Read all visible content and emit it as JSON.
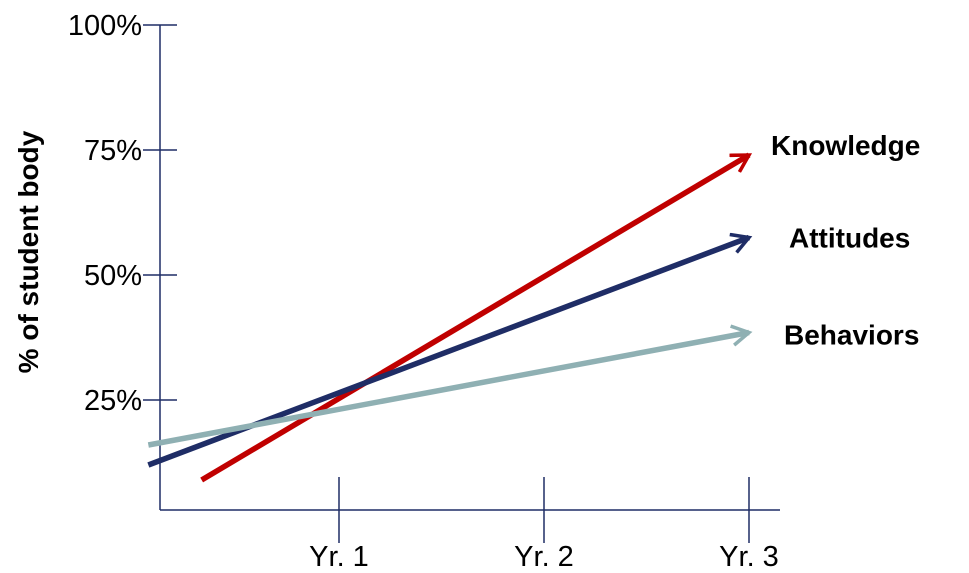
{
  "chart_data": {
    "type": "line",
    "title": "",
    "xlabel": "",
    "ylabel": "% of student body",
    "categories": [
      "Yr. 1",
      "Yr. 2",
      "Yr. 3"
    ],
    "y_tick_labels": [
      "25%",
      "50%",
      "75%",
      "100%"
    ],
    "y_ticks": [
      25,
      50,
      75,
      100
    ],
    "ylim": [
      0,
      100
    ],
    "xlim": [
      0.2,
      3.2
    ],
    "grid": false,
    "legend": "none",
    "series": [
      {
        "name": "Knowledge",
        "color": "#c00000",
        "points": [
          [
            0.33,
            9
          ],
          [
            3.0,
            74
          ]
        ]
      },
      {
        "name": "Attitudes",
        "color": "#1f2d66",
        "points": [
          [
            0.07,
            12
          ],
          [
            3.0,
            57.5
          ]
        ]
      },
      {
        "name": "Behaviors",
        "color": "#8fb0b3",
        "points": [
          [
            0.07,
            16
          ],
          [
            3.0,
            38.5
          ]
        ]
      }
    ]
  }
}
